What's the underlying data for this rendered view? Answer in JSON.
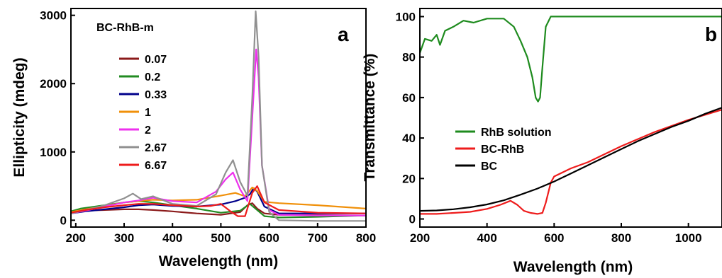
{
  "chart_data": [
    {
      "panel_label": "a",
      "type": "line",
      "xlabel": "Wavelength (nm)",
      "ylabel": "Ellipticity (mdeg)",
      "xlim": [
        190,
        800
      ],
      "ylim": [
        -100,
        3100
      ],
      "xticks": [
        200,
        300,
        400,
        500,
        600,
        700,
        800
      ],
      "yticks": [
        0,
        1000,
        2000,
        3000
      ],
      "grid": false,
      "legend_title": "BC-RhB-m",
      "legend_position": "top-left",
      "series": [
        {
          "name": "0.07",
          "color": "#8B1A1A",
          "x": [
            190,
            220,
            260,
            300,
            330,
            360,
            400,
            450,
            500,
            540,
            555,
            565,
            575,
            590,
            620,
            700,
            800
          ],
          "y": [
            120,
            140,
            150,
            160,
            160,
            150,
            130,
            100,
            80,
            120,
            220,
            250,
            170,
            100,
            80,
            75,
            70
          ]
        },
        {
          "name": "0.2",
          "color": "#228B22",
          "x": [
            190,
            210,
            240,
            270,
            300,
            330,
            360,
            400,
            450,
            500,
            540,
            560,
            575,
            590,
            620,
            700,
            800
          ],
          "y": [
            130,
            170,
            200,
            230,
            260,
            280,
            260,
            220,
            170,
            110,
            140,
            240,
            150,
            60,
            40,
            50,
            70
          ]
        },
        {
          "name": "0.33",
          "color": "#00008B",
          "x": [
            190,
            220,
            260,
            300,
            330,
            360,
            400,
            450,
            500,
            530,
            550,
            560,
            568,
            575,
            590,
            620,
            700,
            800
          ],
          "y": [
            100,
            130,
            160,
            190,
            220,
            230,
            210,
            200,
            230,
            280,
            330,
            380,
            470,
            420,
            200,
            100,
            100,
            100
          ]
        },
        {
          "name": "1",
          "color": "#F0900A",
          "x": [
            190,
            220,
            260,
            300,
            330,
            360,
            400,
            450,
            500,
            530,
            550,
            565,
            575,
            590,
            620,
            700,
            800
          ],
          "y": [
            120,
            160,
            210,
            260,
            280,
            300,
            290,
            300,
            360,
            400,
            350,
            480,
            430,
            270,
            250,
            220,
            170
          ]
        },
        {
          "name": "2",
          "color": "#EE30EE",
          "x": [
            190,
            220,
            260,
            300,
            330,
            360,
            400,
            450,
            490,
            510,
            525,
            540,
            555,
            565,
            573,
            578,
            585,
            600,
            620,
            700,
            800
          ],
          "y": [
            100,
            140,
            200,
            260,
            290,
            330,
            280,
            260,
            420,
            600,
            700,
            450,
            280,
            1500,
            2500,
            2100,
            800,
            150,
            80,
            70,
            70
          ]
        },
        {
          "name": "2.67",
          "color": "#909090",
          "x": [
            190,
            220,
            260,
            300,
            318,
            335,
            360,
            400,
            450,
            490,
            510,
            525,
            540,
            555,
            565,
            572,
            578,
            585,
            600,
            620,
            700,
            800
          ],
          "y": [
            100,
            150,
            220,
            320,
            390,
            310,
            350,
            240,
            210,
            380,
            700,
            880,
            560,
            360,
            1800,
            3060,
            2400,
            800,
            120,
            0,
            -10,
            -10
          ]
        },
        {
          "name": "6.67",
          "color": "#EE1C1C",
          "x": [
            190,
            220,
            260,
            300,
            330,
            360,
            400,
            450,
            480,
            500,
            520,
            535,
            550,
            565,
            575,
            590,
            620,
            700,
            800
          ],
          "y": [
            110,
            150,
            190,
            220,
            240,
            240,
            220,
            200,
            210,
            240,
            130,
            60,
            60,
            400,
            500,
            260,
            150,
            110,
            100
          ]
        }
      ]
    },
    {
      "panel_label": "b",
      "type": "line",
      "xlabel": "Wavelength (nm)",
      "ylabel": "Transmittance (%)",
      "xlim": [
        200,
        1100
      ],
      "ylim": [
        -4,
        104
      ],
      "xticks": [
        200,
        400,
        600,
        800,
        1000
      ],
      "yticks": [
        0,
        20,
        40,
        60,
        80,
        100
      ],
      "grid": false,
      "legend_position": "center-left",
      "series": [
        {
          "name": "RhB solution",
          "color": "#1E8B1E",
          "x": [
            200,
            215,
            235,
            250,
            260,
            275,
            300,
            330,
            360,
            400,
            450,
            480,
            500,
            520,
            535,
            545,
            552,
            558,
            565,
            575,
            590,
            620,
            700,
            800,
            900,
            1000,
            1100
          ],
          "y": [
            82,
            89,
            88,
            91,
            86,
            93,
            95,
            98,
            97,
            99,
            99,
            95,
            88,
            80,
            70,
            60,
            58,
            60,
            75,
            95,
            100,
            100,
            100,
            100,
            100,
            100,
            100
          ]
        },
        {
          "name": "BC-RhB",
          "color": "#EE1C1C",
          "x": [
            200,
            250,
            300,
            350,
            400,
            440,
            470,
            490,
            510,
            530,
            550,
            565,
            575,
            590,
            600,
            650,
            700,
            800,
            900,
            1000,
            1100
          ],
          "y": [
            2.5,
            2.5,
            3,
            3.5,
            5,
            7,
            9,
            7,
            4,
            3,
            2.5,
            3,
            8,
            18,
            21,
            25,
            28,
            36,
            43,
            49,
            54
          ]
        },
        {
          "name": "BC",
          "color": "#000000",
          "x": [
            200,
            250,
            300,
            350,
            400,
            450,
            500,
            550,
            600,
            650,
            700,
            750,
            800,
            850,
            900,
            950,
            1000,
            1050,
            1100
          ],
          "y": [
            4,
            4.2,
            4.8,
            5.8,
            7.2,
            9.2,
            12,
            15,
            18.5,
            22.5,
            26.5,
            30.5,
            34.5,
            38.5,
            42,
            45.5,
            48.5,
            52,
            55
          ]
        }
      ]
    }
  ]
}
